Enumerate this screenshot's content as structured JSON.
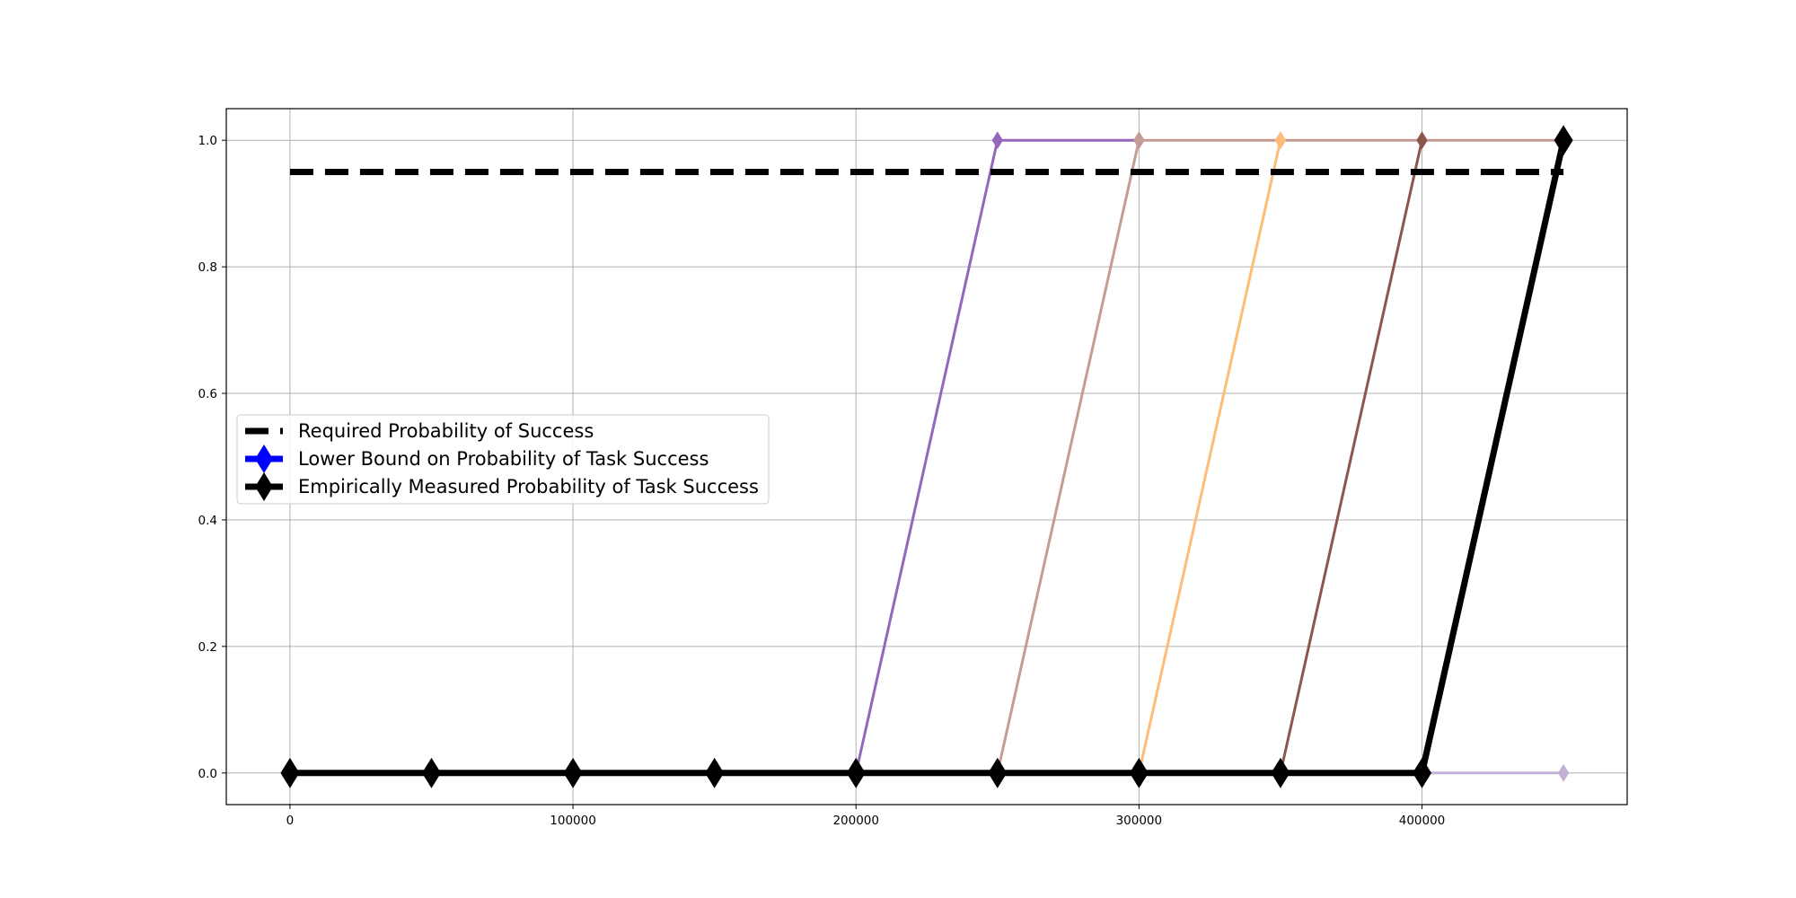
{
  "chart_data": {
    "type": "line",
    "title": "",
    "xlabel": "",
    "ylabel": "",
    "xlim": [
      -22500,
      472500
    ],
    "ylim": [
      -0.05,
      1.05
    ],
    "xticks": [
      0,
      100000,
      200000,
      300000,
      400000
    ],
    "xtick_labels": [
      "0",
      "100000",
      "200000",
      "300000",
      "400000"
    ],
    "yticks": [
      0.0,
      0.2,
      0.4,
      0.6,
      0.8,
      1.0
    ],
    "ytick_labels": [
      "0.0",
      "0.2",
      "0.4",
      "0.6",
      "0.8",
      "1.0"
    ],
    "grid": true,
    "legend_position": "center-left",
    "legend": [
      {
        "label": "Required Probability of Success",
        "color": "#000000",
        "style": "dashed",
        "marker": "none"
      },
      {
        "label": "Lower Bound on Probability of Task Success",
        "color": "#0000ff",
        "style": "solid",
        "marker": "diamond"
      },
      {
        "label": "Empirically Measured Probability of Task Success",
        "color": "#000000",
        "style": "solid",
        "marker": "diamond"
      }
    ],
    "series": [
      {
        "color": "#9467bd",
        "width": 3,
        "marker_size": 9,
        "x": [
          0,
          50000,
          100000,
          150000,
          200000,
          250000,
          300000
        ],
        "y": [
          0,
          0,
          0,
          0,
          0,
          1,
          1
        ]
      },
      {
        "color": "#c49c94",
        "width": 3,
        "marker_size": 9,
        "x": [
          0,
          50000,
          100000,
          150000,
          200000,
          250000,
          300000,
          350000,
          400000,
          450000
        ],
        "y": [
          0,
          0,
          0,
          0,
          0,
          0,
          1,
          1,
          1,
          1
        ]
      },
      {
        "color": "#ffbb78",
        "width": 3,
        "marker_size": 9,
        "x": [
          300000,
          350000
        ],
        "y": [
          0,
          1
        ]
      },
      {
        "color": "#8c564b",
        "width": 3,
        "marker_size": 9,
        "x": [
          350000,
          400000
        ],
        "y": [
          0,
          1
        ]
      },
      {
        "color": "#c5b0d5",
        "width": 3,
        "marker_size": 9,
        "x": [
          400000,
          450000
        ],
        "y": [
          0,
          0
        ]
      },
      {
        "color": "#000000",
        "width": 7,
        "marker_size": 16,
        "x": [
          0,
          50000,
          100000,
          150000,
          200000,
          250000,
          300000,
          350000,
          400000,
          450000
        ],
        "y": [
          0,
          0,
          0,
          0,
          0,
          0,
          0,
          0,
          0,
          1
        ]
      }
    ],
    "reference_line": {
      "y": 0.95,
      "x": [
        0,
        450000
      ],
      "color": "#000000",
      "style": "dashed"
    }
  }
}
